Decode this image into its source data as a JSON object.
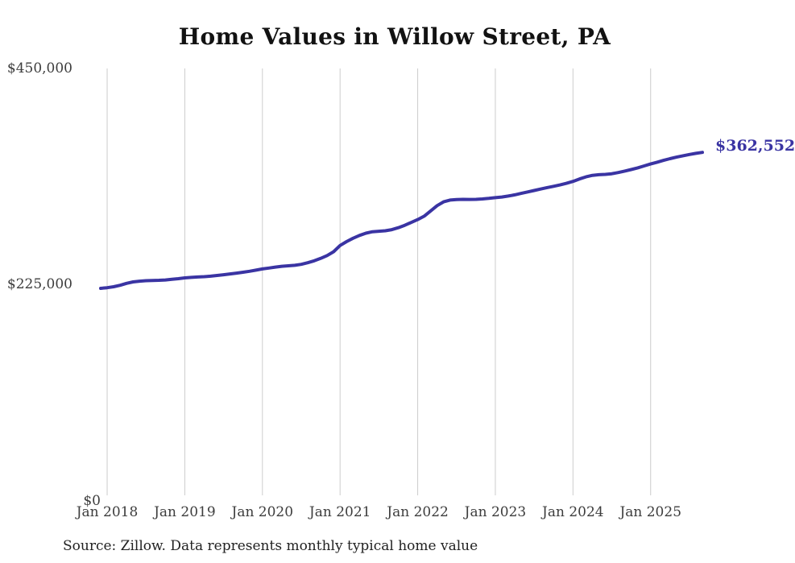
{
  "page": {
    "background": "#ffffff"
  },
  "chart_data": {
    "type": "line",
    "title": "Home Values in Willow Street, PA",
    "source_note": "Source: Zillow. Data represents monthly typical home value",
    "end_label": "$362,552",
    "final_value": 362552,
    "frequency": "monthly",
    "start_month": "2017-12",
    "end_month": "2025-09",
    "grid": "vertical-only",
    "legend": "none",
    "line_color": "#3a34a3",
    "gridline_color": "#cccccc",
    "y_axis": {
      "min": 0,
      "max": 450000,
      "ticks": [
        {
          "label": "$450,000",
          "value": 450000
        },
        {
          "label": "$225,000",
          "value": 225000
        },
        {
          "label": "$0",
          "value": 0
        }
      ]
    },
    "x_axis": {
      "ticks": [
        {
          "label": "Jan 2018",
          "month_index": 1
        },
        {
          "label": "Jan 2019",
          "month_index": 13
        },
        {
          "label": "Jan 2020",
          "month_index": 25
        },
        {
          "label": "Jan 2021",
          "month_index": 37
        },
        {
          "label": "Jan 2022",
          "month_index": 49
        },
        {
          "label": "Jan 2023",
          "month_index": 61
        },
        {
          "label": "Jan 2024",
          "month_index": 73
        },
        {
          "label": "Jan 2025",
          "month_index": 85
        }
      ]
    },
    "series": [
      {
        "name": "Typical home value",
        "values": [
          220800,
          221500,
          222500,
          224000,
          226000,
          227500,
          228300,
          228800,
          229000,
          229200,
          229500,
          230200,
          230900,
          231700,
          232200,
          232600,
          233000,
          233500,
          234200,
          235000,
          235800,
          236700,
          237600,
          238600,
          239800,
          241000,
          242000,
          243000,
          243800,
          244300,
          244800,
          245800,
          247500,
          249500,
          252000,
          255000,
          259000,
          265500,
          269500,
          273000,
          276000,
          278300,
          279800,
          280300,
          280800,
          282000,
          284000,
          286500,
          289500,
          292500,
          296000,
          301500,
          307000,
          311000,
          312800,
          313300,
          313600,
          313500,
          313600,
          314000,
          314600,
          315300,
          316000,
          317000,
          318300,
          319800,
          321300,
          322800,
          324300,
          325800,
          327200,
          328600,
          330300,
          332300,
          334800,
          337000,
          338600,
          339300,
          339600,
          340300,
          341500,
          343000,
          344600,
          346400,
          348400,
          350400,
          352300,
          354200,
          356000,
          357600,
          359000,
          360300,
          361500,
          362552
        ]
      }
    ]
  }
}
